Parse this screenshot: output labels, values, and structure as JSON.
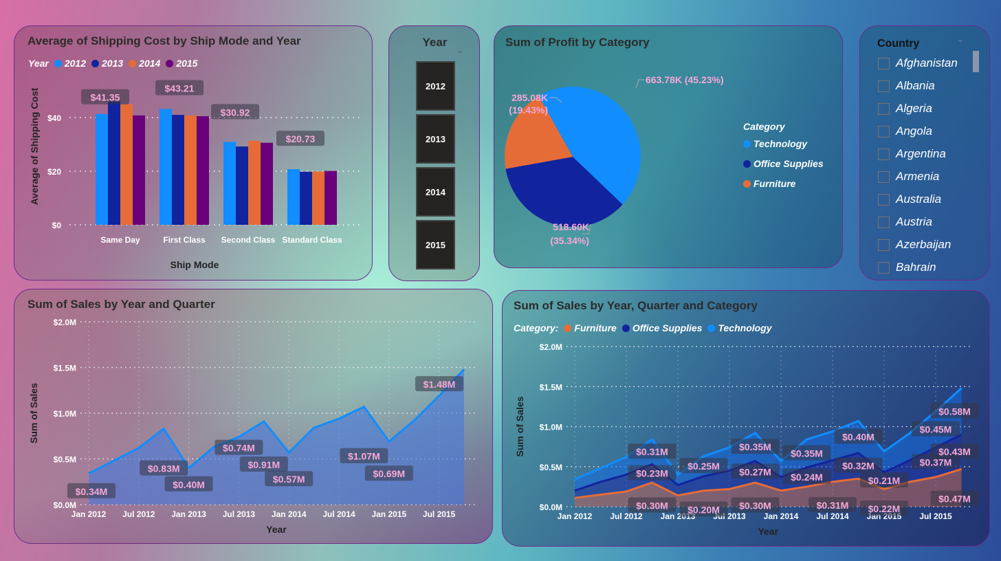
{
  "colors": {
    "c2012": "#118DFF",
    "c2013": "#12239E",
    "c2014": "#E66C37",
    "c2015": "#6B007B",
    "technology": "#118DFF",
    "office_supplies": "#12239E",
    "furniture": "#E66C37",
    "data_label": "#F6A8D8"
  },
  "year_slicer": {
    "title": "Year",
    "options": [
      "2012",
      "2013",
      "2014",
      "2015"
    ]
  },
  "country_slicer": {
    "title": "Country",
    "items": [
      "Afghanistan",
      "Albania",
      "Algeria",
      "Angola",
      "Argentina",
      "Armenia",
      "Australia",
      "Austria",
      "Azerbaijan",
      "Bahrain"
    ]
  },
  "chart_data": [
    {
      "type": "bar",
      "title": "Average of Shipping Cost by Ship Mode and Year",
      "legend_title": "Year",
      "legend_position": "top-left",
      "xlabel": "Ship Mode",
      "ylabel": "Average of Shipping Cost",
      "categories": [
        "Same Day",
        "First Class",
        "Second Class",
        "Standard Class"
      ],
      "series": [
        {
          "name": "2012",
          "values": [
            41.35,
            43.21,
            30.92,
            20.73
          ]
        },
        {
          "name": "2013",
          "values": [
            46.0,
            41.0,
            29.2,
            19.8
          ]
        },
        {
          "name": "2014",
          "values": [
            45.0,
            40.8,
            31.3,
            19.9
          ]
        },
        {
          "name": "2015",
          "values": [
            40.8,
            40.5,
            30.6,
            20.1
          ]
        }
      ],
      "yticks": [
        {
          "v": 0,
          "t": "$0"
        },
        {
          "v": 20,
          "t": "$20"
        },
        {
          "v": 40,
          "t": "$40"
        }
      ],
      "data_labels": [
        "$41.35",
        "$43.21",
        "$30.92",
        "$20.73"
      ],
      "ylim": [
        0,
        48
      ],
      "grid": true
    },
    {
      "type": "pie",
      "title": "Sum of Profit by Category",
      "legend_title": "Category",
      "legend_position": "right",
      "slices": [
        {
          "name": "Technology",
          "value": 663.78,
          "label": "663.78K (45.23%)"
        },
        {
          "name": "Office Supplies",
          "value": 518.6,
          "label_value": "518.60K",
          "label_pct": "(35.34%)"
        },
        {
          "name": "Furniture",
          "value": 285.08,
          "label_value": "285.08K",
          "label_pct": "(19.43%)"
        }
      ]
    },
    {
      "type": "area",
      "title": "Sum of Sales by Year and Quarter",
      "xlabel": "Year",
      "ylabel": "Sum of Sales",
      "xticks": [
        "Jan 2012",
        "Jul 2012",
        "Jan 2013",
        "Jul 2013",
        "Jan 2014",
        "Jul 2014",
        "Jan 2015",
        "Jul 2015"
      ],
      "yticks": [
        "$0.0M",
        "$0.5M",
        "$1.0M",
        "$1.5M",
        "$2.0M"
      ],
      "ylim": [
        0,
        2.0
      ],
      "grid": true,
      "values": [
        0.34,
        0.48,
        0.62,
        0.83,
        0.4,
        0.63,
        0.74,
        0.91,
        0.57,
        0.84,
        0.94,
        1.07,
        0.69,
        0.92,
        1.19,
        1.48
      ],
      "data_labels": [
        {
          "i": 0,
          "text": "$0.34M"
        },
        {
          "i": 3,
          "text": "$0.83M"
        },
        {
          "i": 4,
          "text": "$0.40M"
        },
        {
          "i": 6,
          "text": "$0.74M"
        },
        {
          "i": 7,
          "text": "$0.91M"
        },
        {
          "i": 8,
          "text": "$0.57M"
        },
        {
          "i": 11,
          "text": "$1.07M"
        },
        {
          "i": 12,
          "text": "$0.69M"
        },
        {
          "i": 15,
          "text": "$1.48M"
        }
      ]
    },
    {
      "type": "area",
      "stacked": true,
      "title": "Sum of Sales by Year, Quarter and Category",
      "legend_title": "Category:",
      "legend_position": "top-left",
      "xlabel": "Year",
      "ylabel": "Sum of Sales",
      "xticks": [
        "Jan 2012",
        "Jul 2012",
        "Jan 2013",
        "Jul 2013",
        "Jan 2014",
        "Jul 2014",
        "Jan 2015",
        "Jul 2015"
      ],
      "yticks": [
        "$0.0M",
        "$0.5M",
        "$1.0M",
        "$1.5M",
        "$2.0M"
      ],
      "ylim": [
        0,
        2.0
      ],
      "grid": true,
      "series": [
        {
          "name": "Furniture",
          "values": [
            0.11,
            0.15,
            0.19,
            0.3,
            0.14,
            0.2,
            0.22,
            0.3,
            0.2,
            0.25,
            0.31,
            0.35,
            0.22,
            0.31,
            0.37,
            0.47
          ],
          "data_labels": [
            {
              "i": 3,
              "text": "$0.30M"
            },
            {
              "i": 5,
              "text": "$0.20M"
            },
            {
              "i": 7,
              "text": "$0.30M"
            },
            {
              "i": 10,
              "text": "$0.31M"
            },
            {
              "i": 12,
              "text": "$0.22M"
            },
            {
              "i": 15,
              "text": "$0.47M"
            }
          ]
        },
        {
          "name": "Office Supplies",
          "values": [
            0.09,
            0.16,
            0.21,
            0.23,
            0.13,
            0.18,
            0.23,
            0.27,
            0.17,
            0.24,
            0.27,
            0.32,
            0.21,
            0.27,
            0.37,
            0.43
          ],
          "data_labels": [
            {
              "i": 3,
              "text": "$0.23M"
            },
            {
              "i": 7,
              "text": "$0.27M"
            },
            {
              "i": 9,
              "text": "$0.24M"
            },
            {
              "i": 11,
              "text": "$0.32M"
            },
            {
              "i": 12,
              "text": "$0.21M"
            },
            {
              "i": 14,
              "text": "$0.37M"
            },
            {
              "i": 15,
              "text": "$0.43M"
            }
          ]
        },
        {
          "name": "Technology",
          "values": [
            0.14,
            0.17,
            0.22,
            0.31,
            0.13,
            0.25,
            0.29,
            0.35,
            0.2,
            0.35,
            0.36,
            0.4,
            0.26,
            0.34,
            0.45,
            0.58
          ],
          "data_labels": [
            {
              "i": 3,
              "text": "$0.31M"
            },
            {
              "i": 5,
              "text": "$0.25M"
            },
            {
              "i": 7,
              "text": "$0.35M"
            },
            {
              "i": 9,
              "text": "$0.35M"
            },
            {
              "i": 11,
              "text": "$0.40M"
            },
            {
              "i": 14,
              "text": "$0.45M"
            },
            {
              "i": 15,
              "text": "$0.58M"
            }
          ]
        }
      ]
    }
  ]
}
